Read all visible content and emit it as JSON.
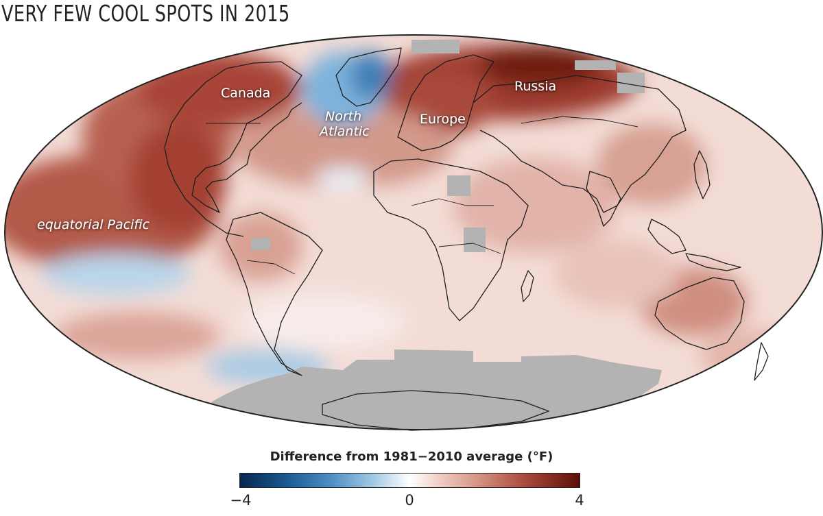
{
  "title": "VERY FEW COOL SPOTS IN 2015",
  "labels": {
    "canada": "Canada",
    "north_atlantic_1": "North",
    "north_atlantic_2": "Atlantic",
    "europe": "Europe",
    "russia": "Russia",
    "equatorial_pacific": "equatorial Pacific"
  },
  "legend": {
    "title": "Difference from 1981−2010 average (°F)",
    "min_label": "−4",
    "mid_label": "0",
    "max_label": "4"
  },
  "colors": {
    "warm_strong": "#6e1a10",
    "warm": "#b45c4e",
    "warm_light": "#ecc9c0",
    "neutral": "#ffffff",
    "cool": "#6aa7d6",
    "no_data": "#b3b3b3"
  }
}
